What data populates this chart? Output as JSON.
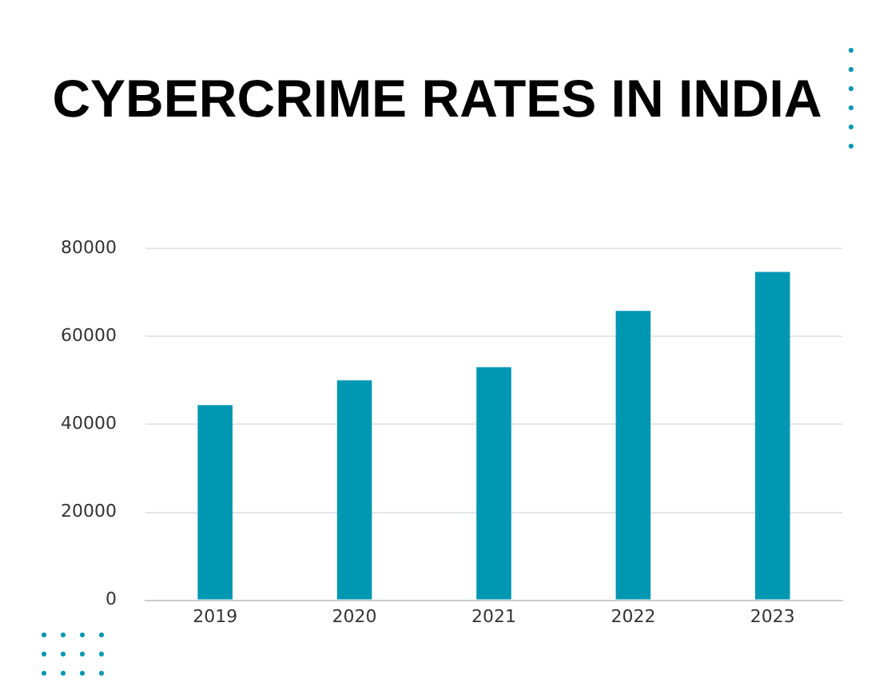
{
  "chart_data": {
    "type": "bar",
    "title": "CYBERCRIME RATES IN INDIA",
    "categories": [
      "2019",
      "2020",
      "2021",
      "2022",
      "2023"
    ],
    "values": [
      44400,
      50000,
      53000,
      65800,
      74700
    ],
    "color": "#0097b2",
    "ylim": [
      0,
      80000
    ],
    "yticks": [
      0,
      20000,
      40000,
      60000,
      80000
    ],
    "grid": "y",
    "legend": false
  }
}
